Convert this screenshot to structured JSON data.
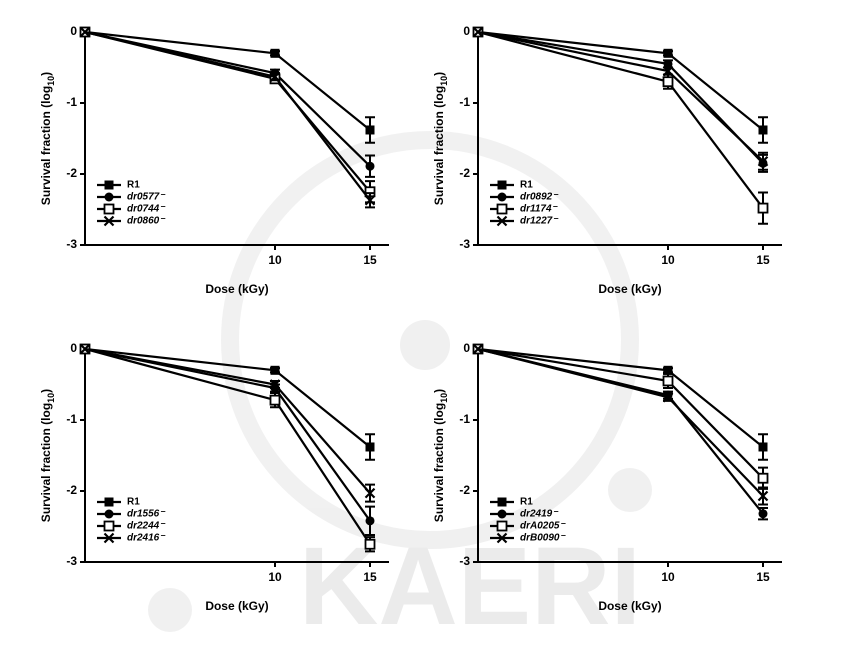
{
  "watermark": "KAERI",
  "chart_data": [
    {
      "type": "line",
      "xlabel": "Dose (kGy)",
      "ylabel": [
        "Survival fraction (log",
        "10",
        ")"
      ],
      "x": [
        0,
        10,
        15
      ],
      "xlim": [
        0,
        16
      ],
      "xticks": [
        10,
        15
      ],
      "ylim": [
        -3,
        0
      ],
      "yticks": [
        -3,
        -2,
        -1,
        0
      ],
      "legend": "lower left",
      "series": [
        {
          "name": "R1",
          "color": "#000000",
          "marker": "square",
          "values": [
            0,
            -0.3,
            -1.38
          ],
          "errors": [
            null,
            0.03,
            0.18
          ]
        },
        {
          "name": "dr0577⁻",
          "color": "#000000",
          "marker": "circle",
          "values": [
            0,
            -0.58,
            -1.89
          ],
          "errors": [
            null,
            0.05,
            0.15
          ]
        },
        {
          "name": "dr0744⁻",
          "color": "#000000",
          "marker": "open-square",
          "values": [
            0,
            -0.66,
            -2.25
          ],
          "errors": [
            null,
            0.05,
            0.15
          ]
        },
        {
          "name": "dr0860⁻",
          "color": "#000000",
          "marker": "x",
          "values": [
            0,
            -0.63,
            -2.37
          ],
          "errors": [
            null,
            0.05,
            0.1
          ]
        }
      ]
    },
    {
      "type": "line",
      "xlabel": "Dose (kGy)",
      "ylabel": [
        "Survival fraction (log",
        "10",
        ")"
      ],
      "x": [
        0,
        10,
        15
      ],
      "xlim": [
        0,
        16
      ],
      "xticks": [
        10,
        15
      ],
      "ylim": [
        -3,
        0
      ],
      "yticks": [
        -3,
        -2,
        -1,
        0
      ],
      "legend": "lower left",
      "series": [
        {
          "name": "R1",
          "color": "#000000",
          "marker": "square",
          "values": [
            0,
            -0.3,
            -1.38
          ],
          "errors": [
            null,
            0.03,
            0.18
          ]
        },
        {
          "name": "dr0892⁻",
          "color": "#000000",
          "marker": "circle",
          "values": [
            0,
            -0.45,
            -1.85
          ],
          "errors": [
            null,
            0.05,
            0.12
          ]
        },
        {
          "name": "dr1174⁻",
          "color": "#000000",
          "marker": "open-square",
          "values": [
            0,
            -0.7,
            -2.48
          ],
          "errors": [
            null,
            0.1,
            0.22
          ]
        },
        {
          "name": "dr1227⁻",
          "color": "#000000",
          "marker": "x",
          "values": [
            0,
            -0.55,
            -1.82
          ],
          "errors": [
            null,
            0.05,
            0.12
          ]
        }
      ]
    },
    {
      "type": "line",
      "xlabel": "Dose (kGy)",
      "ylabel": [
        "Survival fraction (log",
        "10",
        ")"
      ],
      "x": [
        0,
        10,
        15
      ],
      "xlim": [
        0,
        16
      ],
      "xticks": [
        10,
        15
      ],
      "ylim": [
        -3,
        0
      ],
      "yticks": [
        -3,
        -2,
        -1,
        0
      ],
      "legend": "lower left",
      "series": [
        {
          "name": "R1",
          "color": "#000000",
          "marker": "square",
          "values": [
            0,
            -0.3,
            -1.38
          ],
          "errors": [
            null,
            0.03,
            0.18
          ]
        },
        {
          "name": "dr1556⁻",
          "color": "#000000",
          "marker": "circle",
          "values": [
            0,
            -0.55,
            -2.42
          ],
          "errors": [
            null,
            0.05,
            0.2
          ]
        },
        {
          "name": "dr2244⁻",
          "color": "#000000",
          "marker": "open-square",
          "values": [
            0,
            -0.72,
            -2.75
          ],
          "errors": [
            null,
            0.1,
            0.1
          ]
        },
        {
          "name": "dr2416⁻",
          "color": "#000000",
          "marker": "x",
          "values": [
            0,
            -0.5,
            -2.03
          ],
          "errors": [
            null,
            0.05,
            0.12
          ]
        }
      ]
    },
    {
      "type": "line",
      "xlabel": "Dose (kGy)",
      "ylabel": [
        "Survival fraction (log",
        "10",
        ")"
      ],
      "x": [
        0,
        10,
        15
      ],
      "xlim": [
        0,
        16
      ],
      "xticks": [
        10,
        15
      ],
      "ylim": [
        -3,
        0
      ],
      "yticks": [
        -3,
        -2,
        -1,
        0
      ],
      "legend": "lower left",
      "series": [
        {
          "name": "R1",
          "color": "#000000",
          "marker": "square",
          "values": [
            0,
            -0.3,
            -1.38
          ],
          "errors": [
            null,
            0.03,
            0.18
          ]
        },
        {
          "name": "dr2419⁻",
          "color": "#000000",
          "marker": "circle",
          "values": [
            0,
            -0.65,
            -2.32
          ],
          "errors": [
            null,
            0.05,
            0.08
          ]
        },
        {
          "name": "drA0205⁻",
          "color": "#000000",
          "marker": "open-square",
          "values": [
            0,
            -0.45,
            -1.82
          ],
          "errors": [
            null,
            0.1,
            0.15
          ]
        },
        {
          "name": "drB0090⁻",
          "color": "#000000",
          "marker": "x",
          "values": [
            0,
            -0.68,
            -2.07
          ],
          "errors": [
            null,
            0.05,
            0.12
          ]
        }
      ]
    }
  ]
}
